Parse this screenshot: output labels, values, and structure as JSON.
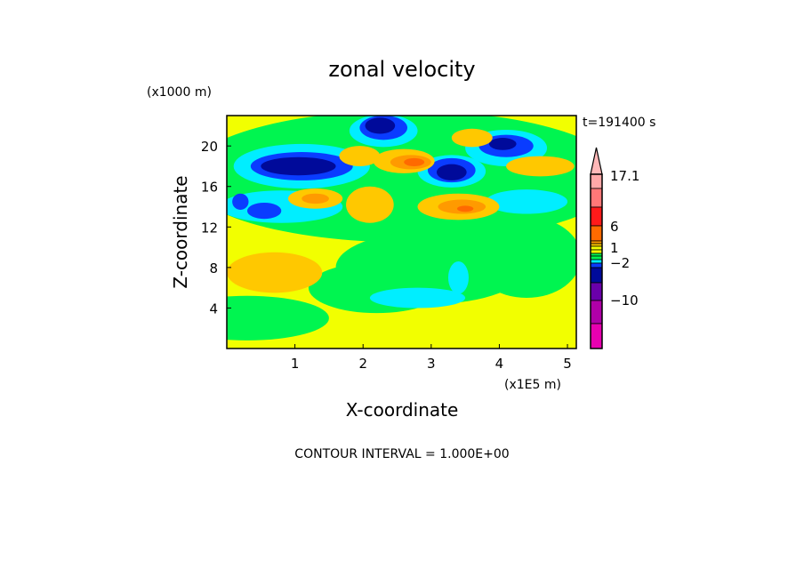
{
  "chart_data": {
    "type": "heatmap",
    "title": "zonal velocity",
    "xlabel": "X-coordinate",
    "ylabel": "Z-coordinate",
    "x_unit": "(x1E5 m)",
    "y_unit": "(x1000 m)",
    "time_label": "t=191400 s",
    "footer": "CONTOUR INTERVAL = 1.000E+00",
    "xlim": [
      0,
      5.13
    ],
    "ylim": [
      0,
      23
    ],
    "xticks": [
      "1",
      "2",
      "3",
      "4",
      "5"
    ],
    "xtick_values": [
      1,
      2,
      3,
      4,
      5
    ],
    "yticks": [
      "4",
      "8",
      "12",
      "16",
      "20"
    ],
    "ytick_values": [
      4,
      8,
      12,
      16,
      20
    ],
    "colorbar": {
      "labels": [
        "17.1",
        "6",
        "1",
        "−2",
        "−10"
      ],
      "label_values": [
        17.1,
        6,
        1,
        -2,
        -10
      ],
      "segments": [
        {
          "from": 12,
          "to": 17.1,
          "color": "#ffa8a8"
        },
        {
          "from": 9,
          "to": 12,
          "color": "#ff7878"
        },
        {
          "from": 6,
          "to": 9,
          "color": "#ff1a1a"
        },
        {
          "from": 4,
          "to": 6,
          "color": "#ff6a00"
        },
        {
          "from": 3,
          "to": 4,
          "color": "#ff9a00"
        },
        {
          "from": 2,
          "to": 3,
          "color": "#ffc800"
        },
        {
          "from": 1,
          "to": 2,
          "color": "#f2ff00"
        },
        {
          "from": 0,
          "to": 1,
          "color": "#f2ff00"
        },
        {
          "from": -0.5,
          "to": 0,
          "color": "#00f550"
        },
        {
          "from": -1,
          "to": -0.5,
          "color": "#00f550"
        },
        {
          "from": -1.5,
          "to": -1,
          "color": "#00eeff"
        },
        {
          "from": -2,
          "to": -1.5,
          "color": "#0a3cff"
        },
        {
          "from": -4,
          "to": -2,
          "color": "#000a9a"
        },
        {
          "from": -7,
          "to": -4,
          "color": "#6a00aa"
        },
        {
          "from": -10,
          "to": -7,
          "color": "#b000a8"
        },
        {
          "from": -14,
          "to": -10,
          "color": "#e800b0"
        }
      ],
      "extend_color": "#ffb8b8"
    },
    "level_colors": {
      "-3": "#000a9a",
      "-2": "#0a3cff",
      "-1": "#00eeff",
      "0": "#00f550",
      "1": "#f2ff00",
      "2": "#ffc800",
      "3": "#ff9a00",
      "5": "#ff6a00"
    },
    "field_blobs": [
      {
        "x": 2.6,
        "z": 17,
        "rx": 3.2,
        "rz": 6.5,
        "level": 0
      },
      {
        "x": 0.3,
        "z": 3,
        "rx": 1.2,
        "rz": 2.2,
        "level": 0
      },
      {
        "x": 3.0,
        "z": 8,
        "rx": 1.4,
        "rz": 3.6,
        "level": 0
      },
      {
        "x": 4.4,
        "z": 9,
        "rx": 0.8,
        "rz": 4,
        "level": 0
      },
      {
        "x": 2.2,
        "z": 6,
        "rx": 1.0,
        "rz": 2.5,
        "level": 0
      },
      {
        "x": 0.8,
        "z": 14,
        "rx": 0.9,
        "rz": 1.6,
        "level": -1
      },
      {
        "x": 1.1,
        "z": 18,
        "rx": 1.0,
        "rz": 2.2,
        "level": -1
      },
      {
        "x": 2.3,
        "z": 21.5,
        "rx": 0.5,
        "rz": 1.6,
        "level": -1
      },
      {
        "x": 3.3,
        "z": 17.5,
        "rx": 0.5,
        "rz": 1.6,
        "level": -1
      },
      {
        "x": 4.1,
        "z": 19.8,
        "rx": 0.6,
        "rz": 1.8,
        "level": -1
      },
      {
        "x": 4.4,
        "z": 14.5,
        "rx": 0.6,
        "rz": 1.2,
        "level": -1
      },
      {
        "x": 2.8,
        "z": 5,
        "rx": 0.7,
        "rz": 1.0,
        "level": -1
      },
      {
        "x": 3.4,
        "z": 7,
        "rx": 0.15,
        "rz": 1.6,
        "level": -1
      },
      {
        "x": 1.1,
        "z": 18,
        "rx": 0.75,
        "rz": 1.4,
        "level": -2
      },
      {
        "x": 0.55,
        "z": 13.6,
        "rx": 0.25,
        "rz": 0.8,
        "level": -2
      },
      {
        "x": 0.2,
        "z": 14.5,
        "rx": 0.12,
        "rz": 0.8,
        "level": -2
      },
      {
        "x": 2.3,
        "z": 21.8,
        "rx": 0.35,
        "rz": 1.2,
        "level": -2
      },
      {
        "x": 3.3,
        "z": 17.6,
        "rx": 0.35,
        "rz": 1.2,
        "level": -2
      },
      {
        "x": 4.1,
        "z": 20,
        "rx": 0.4,
        "rz": 1.1,
        "level": -2
      },
      {
        "x": 1.05,
        "z": 18,
        "rx": 0.55,
        "rz": 0.9,
        "level": -3
      },
      {
        "x": 2.25,
        "z": 22,
        "rx": 0.22,
        "rz": 0.8,
        "level": -3
      },
      {
        "x": 3.3,
        "z": 17.4,
        "rx": 0.22,
        "rz": 0.8,
        "level": -3
      },
      {
        "x": 4.05,
        "z": 20.2,
        "rx": 0.2,
        "rz": 0.6,
        "level": -3
      },
      {
        "x": 0.7,
        "z": 7.5,
        "rx": 0.7,
        "rz": 2.0,
        "level": 2
      },
      {
        "x": 2.6,
        "z": 18.5,
        "rx": 0.45,
        "rz": 1.2,
        "level": 2
      },
      {
        "x": 1.95,
        "z": 19,
        "rx": 0.3,
        "rz": 1.0,
        "level": 2
      },
      {
        "x": 1.3,
        "z": 14.8,
        "rx": 0.4,
        "rz": 1.0,
        "level": 2
      },
      {
        "x": 2.1,
        "z": 14.2,
        "rx": 0.35,
        "rz": 1.8,
        "level": 2
      },
      {
        "x": 3.4,
        "z": 14,
        "rx": 0.6,
        "rz": 1.3,
        "level": 2
      },
      {
        "x": 4.6,
        "z": 18,
        "rx": 0.5,
        "rz": 1.0,
        "level": 2
      },
      {
        "x": 3.6,
        "z": 20.8,
        "rx": 0.3,
        "rz": 0.9,
        "level": 2
      },
      {
        "x": 2.7,
        "z": 18.4,
        "rx": 0.3,
        "rz": 0.7,
        "level": 3
      },
      {
        "x": 3.45,
        "z": 14,
        "rx": 0.35,
        "rz": 0.7,
        "level": 3
      },
      {
        "x": 1.3,
        "z": 14.8,
        "rx": 0.2,
        "rz": 0.5,
        "level": 3
      },
      {
        "x": 2.75,
        "z": 18.4,
        "rx": 0.15,
        "rz": 0.4,
        "level": 5
      },
      {
        "x": 3.5,
        "z": 13.8,
        "rx": 0.12,
        "rz": 0.3,
        "level": 5
      }
    ]
  }
}
